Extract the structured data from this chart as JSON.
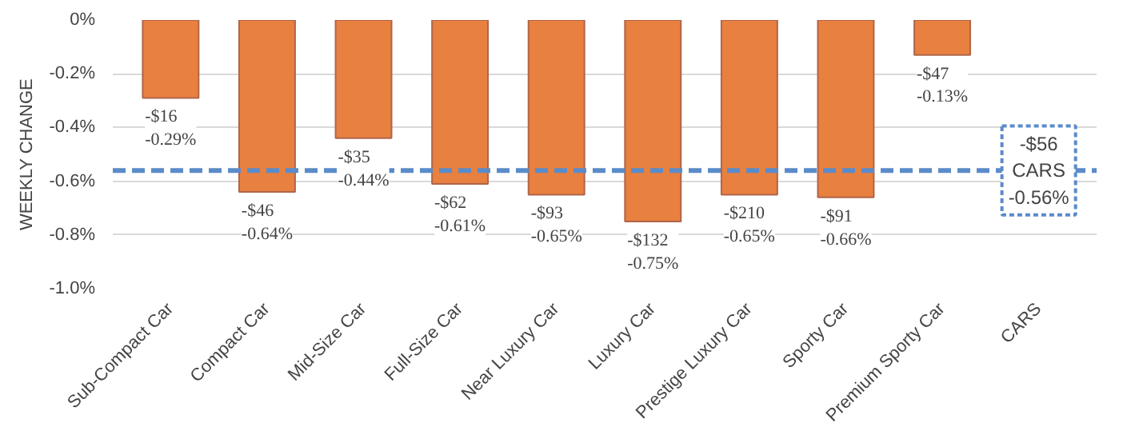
{
  "chart_data": {
    "type": "bar",
    "ylabel": "WEEKLY CHANGE",
    "categories": [
      "Sub-Compact Car",
      "Compact Car",
      "Mid-Size Car",
      "Full-Size Car",
      "Near Luxury Car",
      "Luxury Car",
      "Prestige Luxury Car",
      "Sporty Car",
      "Premium Sporty Car",
      "CARS"
    ],
    "values": [
      -0.29,
      -0.64,
      -0.44,
      -0.61,
      -0.65,
      -0.75,
      -0.65,
      -0.66,
      -0.13,
      null
    ],
    "value_labels": [
      "-$16\n-0.29%",
      "-$46\n-0.64%",
      "-$35\n-0.44%",
      "-$62\n-0.61%",
      "-$93\n-0.65%",
      "-$132\n-0.75%",
      "-$210\n-0.65%",
      "-$91\n-0.66%",
      "-$47\n-0.13%",
      null
    ],
    "color": "#e8803f",
    "ylim": [
      -1.0,
      0
    ],
    "yticks": [
      {
        "value": 0,
        "label": "0%"
      },
      {
        "value": -0.2,
        "label": "-0.2%"
      },
      {
        "value": -0.4,
        "label": "-0.4%"
      },
      {
        "value": -0.6,
        "label": "-0.6%"
      },
      {
        "value": -0.8,
        "label": "-0.8%"
      },
      {
        "value": -1.0,
        "label": "-1.0%"
      }
    ],
    "grid": "y",
    "ref_lines": [
      {
        "axis": "y",
        "value": -0.56,
        "label": "-$56\nCARS\n-0.56%",
        "color": "#5b8bc9",
        "line_style": "dashed"
      }
    ]
  }
}
